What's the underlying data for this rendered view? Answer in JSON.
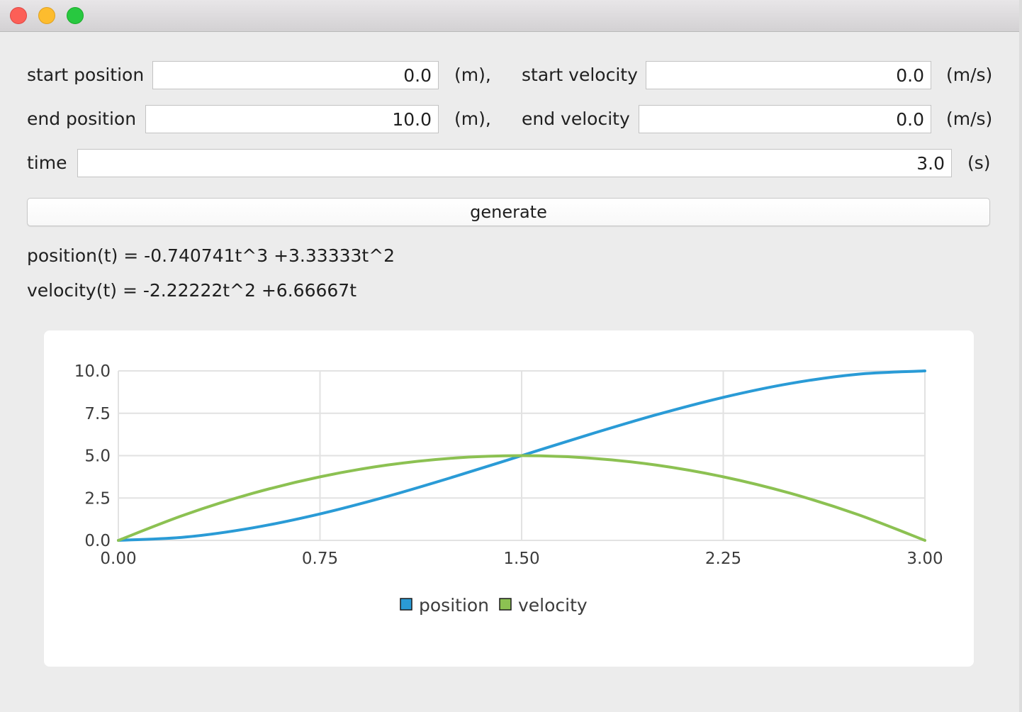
{
  "form": {
    "start_position": {
      "label": "start position",
      "value": "0.0",
      "unit": "(m),"
    },
    "start_velocity": {
      "label": "start velocity",
      "value": "0.0",
      "unit": "(m/s)"
    },
    "end_position": {
      "label": "end position",
      "value": "10.0",
      "unit": "(m),"
    },
    "end_velocity": {
      "label": "end velocity",
      "value": "0.0",
      "unit": "(m/s)"
    },
    "time": {
      "label": "time",
      "value": "3.0",
      "unit": "(s)"
    }
  },
  "generate_label": "generate",
  "equations": {
    "position": "position(t) = -0.740741t^3 +3.33333t^2",
    "velocity": "velocity(t) = -2.22222t^2 +6.66667t"
  },
  "chart_data": {
    "type": "line",
    "title": "",
    "xlabel": "",
    "ylabel": "",
    "xlim": [
      0,
      3
    ],
    "ylim": [
      0,
      10
    ],
    "x_ticks": [
      "0.00",
      "0.75",
      "1.50",
      "2.25",
      "3.00"
    ],
    "y_ticks": [
      "0.0",
      "2.5",
      "5.0",
      "7.5",
      "10.0"
    ],
    "grid": true,
    "legend_position": "bottom",
    "x": [
      0,
      0.25,
      0.5,
      0.75,
      1.0,
      1.25,
      1.5,
      1.75,
      2.0,
      2.25,
      2.5,
      2.75,
      3.0
    ],
    "series": [
      {
        "name": "position",
        "color": "#2a9bd6",
        "values": [
          0,
          0.197,
          0.741,
          1.563,
          2.593,
          3.762,
          5.0,
          6.238,
          7.407,
          8.438,
          9.259,
          9.803,
          10.0
        ]
      },
      {
        "name": "velocity",
        "color": "#8cc152",
        "values": [
          0,
          1.528,
          2.778,
          3.75,
          4.444,
          4.861,
          5.0,
          4.861,
          4.444,
          3.75,
          2.778,
          1.528,
          0
        ]
      }
    ]
  }
}
